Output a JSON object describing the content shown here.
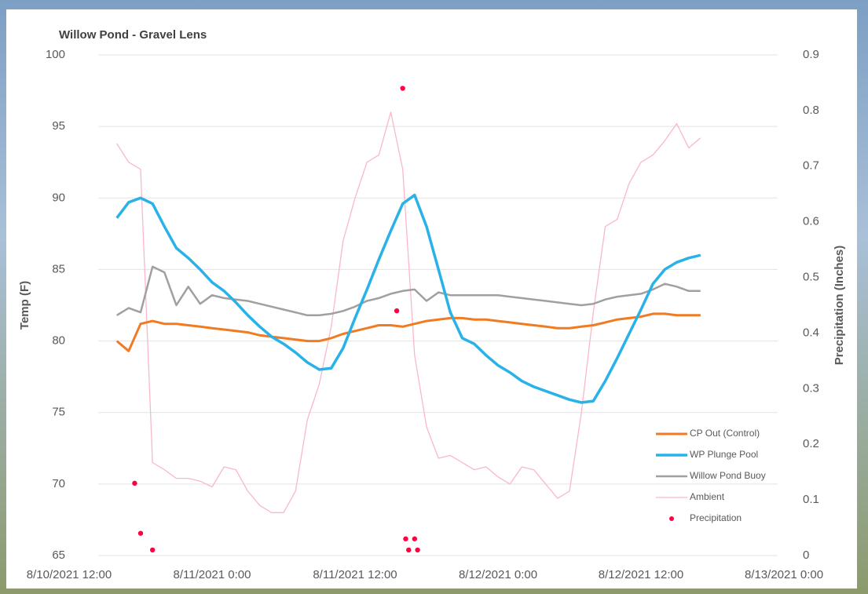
{
  "chart_data": {
    "type": "line",
    "title": "Willow Pond - Gravel Lens",
    "y_label": "Temp (F)",
    "y2_label": "Precipitation (Inches)",
    "xlim": [
      "8/10/2021 12:00",
      "8/13/2021 0:00"
    ],
    "xticks": [
      "8/10/2021 12:00",
      "8/11/2021 0:00",
      "8/11/2021 12:00",
      "8/12/2021 0:00",
      "8/12/2021 12:00",
      "8/13/2021 0:00"
    ],
    "ylim": [
      65,
      100
    ],
    "yticks": [
      65,
      70,
      75,
      80,
      85,
      90,
      95,
      100
    ],
    "y2lim": [
      0,
      0.9
    ],
    "y2ticks": [
      0,
      0.1,
      0.2,
      0.3,
      0.4,
      0.5,
      0.6,
      0.7,
      0.8,
      0.9
    ],
    "grid": true,
    "legend": "lower right",
    "x": [
      "8/10/2021 16:00",
      "8/10/2021 17:00",
      "8/10/2021 18:00",
      "8/10/2021 19:00",
      "8/10/2021 20:00",
      "8/10/2021 21:00",
      "8/10/2021 22:00",
      "8/10/2021 23:00",
      "8/11/2021 0:00",
      "8/11/2021 1:00",
      "8/11/2021 2:00",
      "8/11/2021 3:00",
      "8/11/2021 4:00",
      "8/11/2021 5:00",
      "8/11/2021 6:00",
      "8/11/2021 7:00",
      "8/11/2021 8:00",
      "8/11/2021 9:00",
      "8/11/2021 10:00",
      "8/11/2021 11:00",
      "8/11/2021 12:00",
      "8/11/2021 13:00",
      "8/11/2021 14:00",
      "8/11/2021 15:00",
      "8/11/2021 16:00",
      "8/11/2021 17:00",
      "8/11/2021 18:00",
      "8/11/2021 19:00",
      "8/11/2021 20:00",
      "8/11/2021 21:00",
      "8/11/2021 22:00",
      "8/11/2021 23:00",
      "8/12/2021 0:00",
      "8/12/2021 1:00",
      "8/12/2021 2:00",
      "8/12/2021 3:00",
      "8/12/2021 4:00",
      "8/12/2021 5:00",
      "8/12/2021 6:00",
      "8/12/2021 7:00",
      "8/12/2021 8:00",
      "8/12/2021 9:00",
      "8/12/2021 10:00",
      "8/12/2021 11:00",
      "8/12/2021 12:00",
      "8/12/2021 13:00",
      "8/12/2021 14:00",
      "8/12/2021 15:00",
      "8/12/2021 16:00",
      "8/12/2021 17:00"
    ],
    "series": [
      {
        "name": "CP Out (Control)",
        "color": "#f07b22",
        "width": 3,
        "values": [
          80.0,
          79.3,
          81.2,
          81.4,
          81.2,
          81.2,
          81.1,
          81.0,
          80.9,
          80.8,
          80.7,
          80.6,
          80.4,
          80.3,
          80.2,
          80.1,
          80.0,
          80.0,
          80.2,
          80.5,
          80.7,
          80.9,
          81.1,
          81.1,
          81.0,
          81.2,
          81.4,
          81.5,
          81.6,
          81.6,
          81.5,
          81.5,
          81.4,
          81.3,
          81.2,
          81.1,
          81.0,
          80.9,
          80.9,
          81.0,
          81.1,
          81.3,
          81.5,
          81.6,
          81.7,
          81.9,
          81.9,
          81.8,
          81.8,
          81.8
        ]
      },
      {
        "name": "WP Plunge Pool",
        "color": "#29b2e8",
        "width": 3.5,
        "values": [
          88.6,
          89.7,
          90.0,
          89.6,
          88.0,
          86.5,
          85.8,
          85.0,
          84.1,
          83.5,
          82.7,
          81.8,
          81.0,
          80.3,
          79.8,
          79.2,
          78.5,
          78.0,
          78.1,
          79.5,
          81.6,
          83.6,
          85.7,
          87.7,
          89.6,
          90.2,
          88.0,
          85.0,
          82.0,
          80.2,
          79.8,
          79.0,
          78.3,
          77.8,
          77.2,
          76.8,
          76.5,
          76.2,
          75.9,
          75.7,
          75.8,
          77.2,
          78.8,
          80.5,
          82.2,
          84.0,
          85.0,
          85.5,
          85.8,
          86.0
        ]
      },
      {
        "name": "Willow Pond Buoy",
        "color": "#a0a0a0",
        "width": 2.5,
        "values": [
          81.8,
          82.3,
          82.0,
          85.2,
          84.8,
          82.5,
          83.8,
          82.6,
          83.2,
          83.0,
          82.9,
          82.8,
          82.6,
          82.4,
          82.2,
          82.0,
          81.8,
          81.8,
          81.9,
          82.1,
          82.4,
          82.8,
          83.0,
          83.3,
          83.5,
          83.6,
          82.8,
          83.4,
          83.2,
          83.2,
          83.2,
          83.2,
          83.2,
          83.1,
          83.0,
          82.9,
          82.8,
          82.7,
          82.6,
          82.5,
          82.6,
          82.9,
          83.1,
          83.2,
          83.3,
          83.6,
          84.0,
          83.8,
          83.5,
          83.5
        ]
      },
      {
        "name": "Ambient",
        "color": "#f9b8c6",
        "width": 1.3,
        "values": [
          93.8,
          92.5,
          92.0,
          71.5,
          71.0,
          70.4,
          70.4,
          70.2,
          69.8,
          71.2,
          71.0,
          69.5,
          68.5,
          68.0,
          68.0,
          69.5,
          74.5,
          77.0,
          81.0,
          87.0,
          90.0,
          92.5,
          93.0,
          96.0,
          92.0,
          79.0,
          74.0,
          71.8,
          72.0,
          71.5,
          71.0,
          71.2,
          70.5,
          70.0,
          71.2,
          71.0,
          70.0,
          69.0,
          69.5,
          75.0,
          82.0,
          88.0,
          88.5,
          91.0,
          92.5,
          93.0,
          94.0,
          95.2,
          93.5,
          94.2
        ]
      },
      {
        "name": "Precipitation",
        "color": "#ff0040",
        "axis": "y2",
        "type": "scatter",
        "x": [
          "8/10/2021 17:30",
          "8/10/2021 18:00",
          "8/10/2021 19:00",
          "8/11/2021 15:30",
          "8/11/2021 16:00",
          "8/11/2021 16:15",
          "8/11/2021 16:30",
          "8/11/2021 17:00",
          "8/11/2021 17:15"
        ],
        "values": [
          0.13,
          0.04,
          0.01,
          0.44,
          0.84,
          0.03,
          0.01,
          0.03,
          0.01
        ]
      }
    ]
  }
}
